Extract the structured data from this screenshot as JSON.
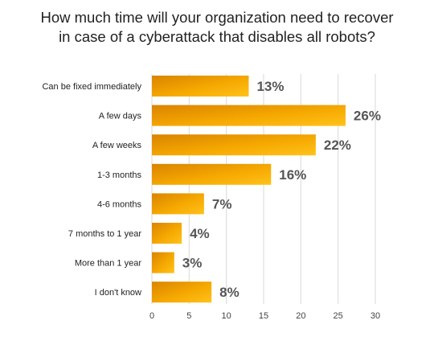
{
  "title_lines": [
    "How much time will your organization need to recover",
    "in case of a cyberattack that disables all robots?"
  ],
  "chart_data": {
    "type": "bar",
    "orientation": "horizontal",
    "title": "How much time will your organization need to recover in case of a cyberattack that disables all robots?",
    "categories": [
      "Can be fixed immediately",
      "A few days",
      "A few weeks",
      "1-3 months",
      "4-6 months",
      "7 months to 1 year",
      "More than 1 year",
      "I don't know"
    ],
    "values": [
      13,
      26,
      22,
      16,
      7,
      4,
      3,
      8
    ],
    "value_labels": [
      "13%",
      "26%",
      "22%",
      "16%",
      "7%",
      "4%",
      "3%",
      "8%"
    ],
    "xlim": [
      0,
      30
    ],
    "xticks": [
      0,
      5,
      10,
      15,
      20,
      25,
      30
    ],
    "grid": true,
    "bar_color": "#f5a800"
  }
}
